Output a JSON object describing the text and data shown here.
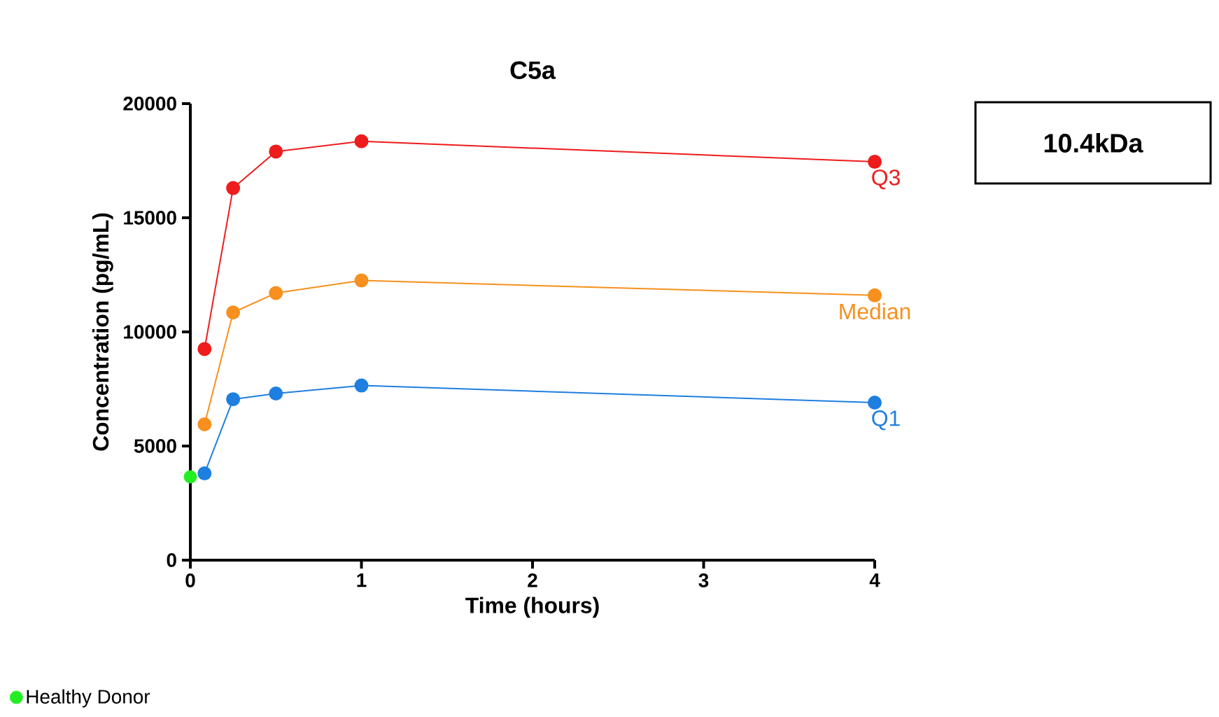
{
  "chart_data": {
    "type": "line",
    "title": "C5a",
    "xlabel": "Time (hours)",
    "ylabel": "Concentration (pg/mL)",
    "x": [
      0.083,
      0.25,
      0.5,
      1,
      4
    ],
    "series": [
      {
        "name": "Q3",
        "color": "#ee1c1c",
        "values": [
          9250,
          16300,
          17900,
          18350,
          17450
        ]
      },
      {
        "name": "Median",
        "color": "#f7901e",
        "values": [
          5950,
          10850,
          11700,
          12250,
          11600
        ]
      },
      {
        "name": "Q1",
        "color": "#1f7fe0",
        "values": [
          3800,
          7050,
          7300,
          7650,
          6900
        ]
      },
      {
        "name": "Healthy Donor",
        "color": "#22ee22",
        "type": "scatter",
        "x": [
          0
        ],
        "values": [
          3650
        ]
      }
    ],
    "xlim": [
      0,
      4
    ],
    "ylim": [
      0,
      20000
    ],
    "xticks": [
      0,
      1,
      2,
      3,
      4
    ],
    "yticks": [
      0,
      5000,
      10000,
      15000,
      20000
    ],
    "annotations": [
      "10.4kDa"
    ],
    "marker": "circle",
    "legend": "bottom left",
    "grid": false
  }
}
